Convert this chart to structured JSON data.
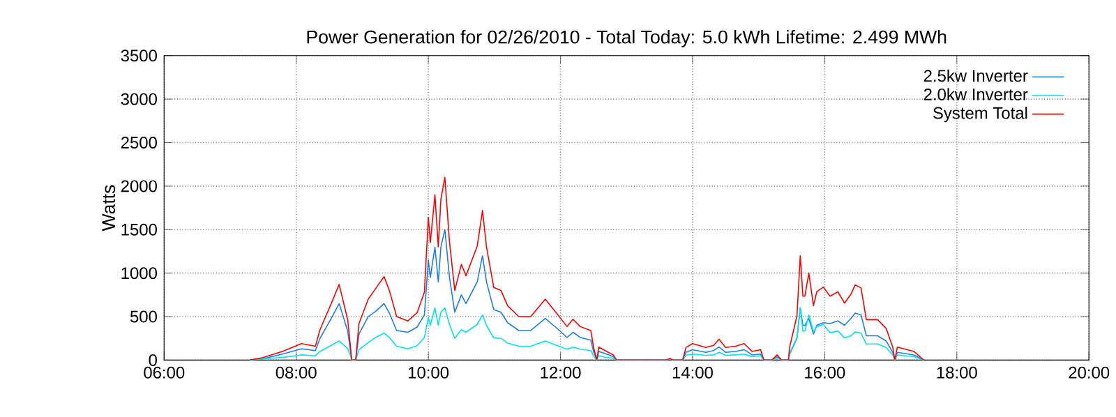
{
  "chart_data": {
    "type": "line",
    "title": "Power Generation for 02/26/2010 - Total Today: 5.0 kWh   Lifetime: 2.499 MWh",
    "ylabel": "Watts",
    "x": [
      7.3,
      7.5,
      7.79,
      8.08,
      8.29,
      8.36,
      8.53,
      8.65,
      8.78,
      8.82,
      8.84,
      8.9,
      8.95,
      9.09,
      9.2,
      9.33,
      9.41,
      9.52,
      9.69,
      9.83,
      9.94,
      10.0,
      10.03,
      10.1,
      10.15,
      10.19,
      10.25,
      10.32,
      10.4,
      10.5,
      10.57,
      10.74,
      10.82,
      10.88,
      10.99,
      11.1,
      11.2,
      11.37,
      11.55,
      11.77,
      11.94,
      12.1,
      12.19,
      12.3,
      12.46,
      12.5,
      12.55,
      12.58,
      12.7,
      12.8,
      12.85,
      13.6,
      13.66,
      13.7,
      13.85,
      13.9,
      14.0,
      14.2,
      14.32,
      14.4,
      14.5,
      14.65,
      14.78,
      14.9,
      15.03,
      15.08,
      15.2,
      15.28,
      15.35,
      15.45,
      15.47,
      15.58,
      15.63,
      15.67,
      15.7,
      15.76,
      15.83,
      15.88,
      15.98,
      16.08,
      16.2,
      16.3,
      16.4,
      16.46,
      16.55,
      16.63,
      16.8,
      16.93,
      17.03,
      17.06,
      17.1,
      17.35,
      17.5
    ],
    "series": [
      {
        "name": "2.5kw Inverter",
        "color": "#1a7ef0",
        "values": [
          0,
          15,
          70,
          130,
          110,
          250,
          480,
          650,
          330,
          110,
          0,
          0,
          300,
          500,
          560,
          650,
          540,
          340,
          320,
          380,
          520,
          1150,
          950,
          1300,
          900,
          1300,
          1500,
          950,
          550,
          750,
          650,
          900,
          1200,
          900,
          580,
          550,
          430,
          340,
          340,
          480,
          370,
          260,
          320,
          260,
          230,
          100,
          0,
          100,
          70,
          40,
          0,
          0,
          10,
          0,
          0,
          90,
          120,
          90,
          110,
          150,
          90,
          100,
          120,
          60,
          70,
          0,
          0,
          35,
          0,
          0,
          70,
          250,
          600,
          400,
          400,
          480,
          300,
          400,
          430,
          420,
          450,
          400,
          480,
          540,
          520,
          280,
          280,
          220,
          90,
          0,
          90,
          60,
          0
        ]
      },
      {
        "name": "2.0kw Inverter",
        "color": "#00e6e6",
        "values": [
          0,
          15,
          30,
          60,
          50,
          100,
          170,
          220,
          130,
          50,
          0,
          0,
          120,
          200,
          260,
          310,
          260,
          160,
          130,
          165,
          260,
          490,
          400,
          600,
          400,
          550,
          600,
          410,
          250,
          350,
          320,
          410,
          520,
          400,
          255,
          250,
          195,
          160,
          160,
          220,
          170,
          125,
          150,
          125,
          110,
          50,
          0,
          50,
          30,
          20,
          0,
          0,
          10,
          0,
          0,
          55,
          70,
          55,
          60,
          90,
          55,
          60,
          70,
          40,
          50,
          0,
          0,
          25,
          0,
          0,
          80,
          260,
          600,
          335,
          335,
          520,
          325,
          385,
          410,
          315,
          335,
          255,
          280,
          325,
          310,
          185,
          185,
          145,
          60,
          0,
          60,
          40,
          0
        ]
      },
      {
        "name": "System Total",
        "color": "#ff0000",
        "values": [
          0,
          30,
          100,
          190,
          160,
          350,
          650,
          870,
          460,
          160,
          0,
          0,
          420,
          700,
          820,
          960,
          800,
          500,
          450,
          545,
          780,
          1640,
          1350,
          1900,
          1300,
          1850,
          2100,
          1360,
          800,
          1100,
          970,
          1310,
          1720,
          1300,
          835,
          800,
          625,
          500,
          500,
          700,
          540,
          385,
          470,
          385,
          340,
          150,
          0,
          150,
          100,
          60,
          0,
          0,
          20,
          0,
          0,
          145,
          190,
          145,
          170,
          240,
          145,
          160,
          190,
          100,
          120,
          0,
          0,
          60,
          0,
          0,
          150,
          510,
          1200,
          735,
          735,
          1000,
          625,
          785,
          840,
          735,
          785,
          655,
          760,
          865,
          830,
          465,
          465,
          365,
          150,
          0,
          150,
          100,
          0
        ]
      }
    ],
    "xlim": [
      6,
      20
    ],
    "xticks": [
      {
        "value": 6,
        "label": "06:00"
      },
      {
        "value": 8,
        "label": "08:00"
      },
      {
        "value": 10,
        "label": "10:00"
      },
      {
        "value": 12,
        "label": "12:00"
      },
      {
        "value": 14,
        "label": "14:00"
      },
      {
        "value": 16,
        "label": "16:00"
      },
      {
        "value": 18,
        "label": "18:00"
      },
      {
        "value": 20,
        "label": "20:00"
      }
    ],
    "ylim": [
      0,
      3500
    ],
    "yticks": [
      0,
      500,
      1000,
      1500,
      2000,
      2500,
      3000,
      3500
    ],
    "grid": true,
    "legend": "top right"
  }
}
